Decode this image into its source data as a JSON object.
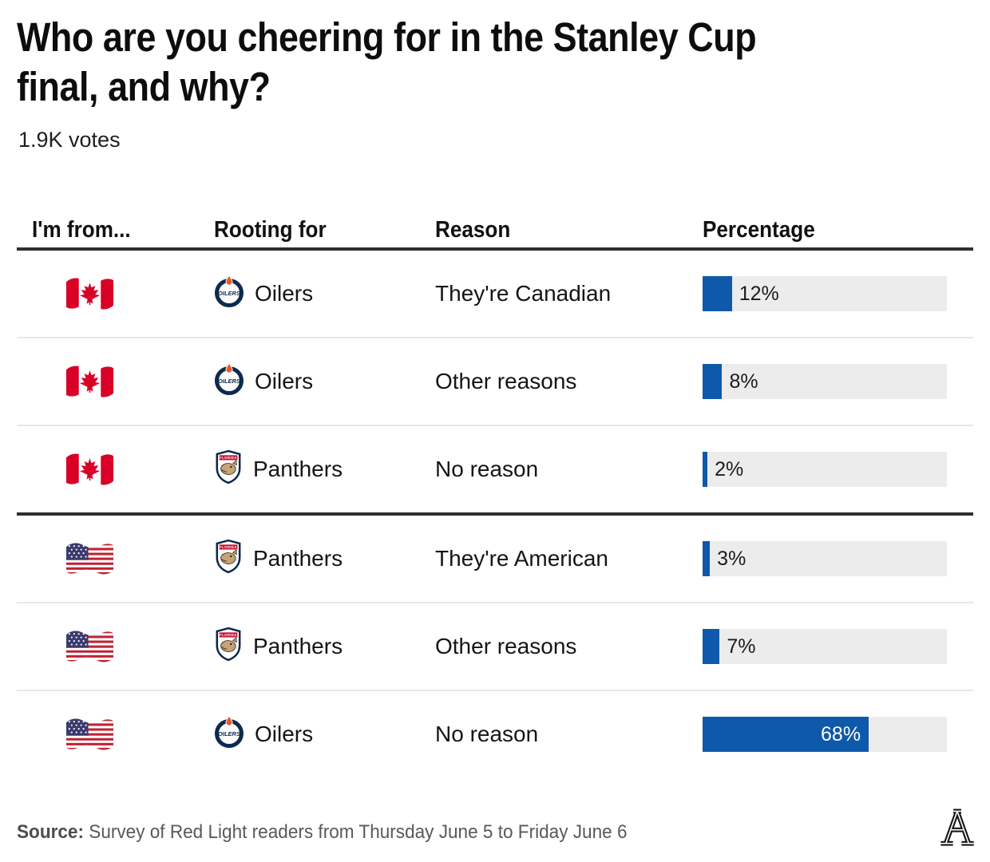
{
  "header": {
    "title": "Who are you cheering for in the Stanley Cup\nfinal, and why?",
    "votes": "1.9K votes"
  },
  "table": {
    "columns": [
      "I'm from...",
      "Rooting for",
      "Reason",
      "Percentage"
    ],
    "rows": [
      {
        "flag": "canada-flag-icon",
        "team_logo": "oilers-logo-icon",
        "team": "Oilers",
        "reason": "They're Canadian",
        "pct": 12,
        "pct_label": "12%"
      },
      {
        "flag": "canada-flag-icon",
        "team_logo": "oilers-logo-icon",
        "team": "Oilers",
        "reason": "Other reasons",
        "pct": 8,
        "pct_label": "8%"
      },
      {
        "flag": "canada-flag-icon",
        "team_logo": "panthers-logo-icon",
        "team": "Panthers",
        "reason": "No reason",
        "pct": 2,
        "pct_label": "2%"
      },
      {
        "flag": "us-flag-icon",
        "team_logo": "panthers-logo-icon",
        "team": "Panthers",
        "reason": "They're American",
        "pct": 3,
        "pct_label": "3%"
      },
      {
        "flag": "us-flag-icon",
        "team_logo": "panthers-logo-icon",
        "team": "Panthers",
        "reason": "Other reasons",
        "pct": 7,
        "pct_label": "7%"
      },
      {
        "flag": "us-flag-icon",
        "team_logo": "oilers-logo-icon",
        "team": "Oilers",
        "reason": "No reason",
        "pct": 68,
        "pct_label": "68%"
      }
    ]
  },
  "footer": {
    "source_label": "Source:",
    "source_text": " Survey of Red Light readers from Thursday June 5 to Friday June 6",
    "logo": "athletic-a-logo"
  },
  "colors": {
    "bar_fill": "#0e59a9",
    "bar_track": "#ececec",
    "rule_dark": "#2f2f2f",
    "rule_light": "#e7e7e7",
    "canada_red": "#d80027",
    "us_red": "#bf2333",
    "us_blue": "#3c3b6e",
    "oilers_navy": "#0c2b4d",
    "oilers_orange": "#ea5a24",
    "panthers_red": "#c8102e",
    "panthers_navy": "#08264a"
  },
  "chart_data": {
    "type": "bar",
    "title": "Who are you cheering for in the Stanley Cup final, and why?",
    "subtitle": "1.9K votes",
    "categories": [
      "Canada — Oilers — They're Canadian",
      "Canada — Oilers — Other reasons",
      "Canada — Panthers — No reason",
      "USA — Panthers — They're American",
      "USA — Panthers — Other reasons",
      "USA — Oilers — No reason"
    ],
    "values": [
      12,
      8,
      2,
      3,
      7,
      68
    ],
    "unit": "%",
    "xlim": [
      0,
      100
    ],
    "xlabel": "Percentage",
    "ylabel": "",
    "legend": "none",
    "grid": false,
    "source": "Survey of Red Light readers from Thursday June 5 to Friday June 6"
  }
}
